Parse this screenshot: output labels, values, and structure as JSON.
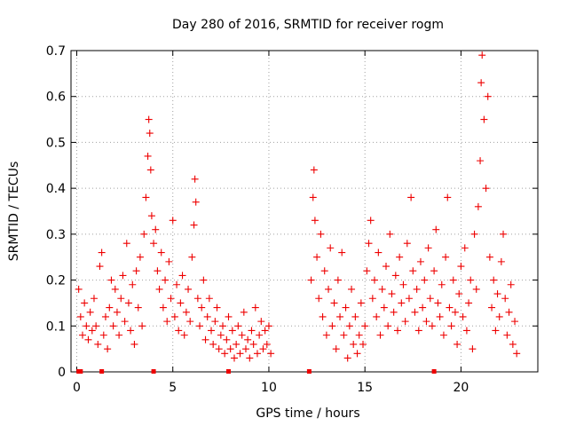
{
  "chart_data": {
    "type": "scatter",
    "title": "Day 280 of 2016, SRMTID for receiver rogm",
    "xlabel": "GPS time / hours",
    "ylabel": "SRMTID / TECUs",
    "xlim": [
      -0.3,
      24
    ],
    "ylim": [
      0,
      0.7
    ],
    "xticks": [
      0,
      5,
      10,
      15,
      20
    ],
    "yticks": [
      0,
      0.1,
      0.2,
      0.3,
      0.4,
      0.5,
      0.6,
      0.7
    ],
    "xtick_labels": [
      "0",
      "5",
      "10",
      "15",
      "20"
    ],
    "ytick_labels": [
      "0",
      "0.1",
      "0.2",
      "0.3",
      "0.4",
      "0.5",
      "0.6",
      "0.7"
    ],
    "grid": true,
    "marker": "+",
    "color": "#ee0000",
    "series": [
      {
        "name": "SRMTID",
        "points": [
          [
            0.1,
            0.18
          ],
          [
            0.2,
            0.12
          ],
          [
            0.3,
            0.08
          ],
          [
            0.4,
            0.15
          ],
          [
            0.5,
            0.1
          ],
          [
            0.6,
            0.07
          ],
          [
            0.7,
            0.13
          ],
          [
            0.8,
            0.09
          ],
          [
            0.9,
            0.16
          ],
          [
            1.0,
            0.1
          ],
          [
            1.1,
            0.06
          ],
          [
            1.2,
            0.23
          ],
          [
            1.3,
            0.26
          ],
          [
            1.4,
            0.08
          ],
          [
            1.5,
            0.12
          ],
          [
            1.6,
            0.05
          ],
          [
            1.7,
            0.14
          ],
          [
            1.8,
            0.2
          ],
          [
            1.9,
            0.1
          ],
          [
            2.0,
            0.18
          ],
          [
            2.1,
            0.13
          ],
          [
            2.2,
            0.08
          ],
          [
            2.3,
            0.16
          ],
          [
            2.4,
            0.21
          ],
          [
            2.5,
            0.11
          ],
          [
            2.6,
            0.28
          ],
          [
            2.7,
            0.15
          ],
          [
            2.8,
            0.09
          ],
          [
            2.9,
            0.19
          ],
          [
            3.0,
            0.06
          ],
          [
            3.1,
            0.22
          ],
          [
            3.2,
            0.14
          ],
          [
            3.3,
            0.25
          ],
          [
            3.4,
            0.1
          ],
          [
            3.5,
            0.3
          ],
          [
            3.6,
            0.38
          ],
          [
            3.7,
            0.47
          ],
          [
            3.75,
            0.55
          ],
          [
            3.8,
            0.52
          ],
          [
            3.85,
            0.44
          ],
          [
            3.9,
            0.34
          ],
          [
            4.0,
            0.28
          ],
          [
            4.1,
            0.31
          ],
          [
            4.2,
            0.22
          ],
          [
            4.3,
            0.18
          ],
          [
            4.4,
            0.26
          ],
          [
            4.5,
            0.14
          ],
          [
            4.6,
            0.2
          ],
          [
            4.7,
            0.11
          ],
          [
            4.8,
            0.24
          ],
          [
            4.9,
            0.16
          ],
          [
            5.0,
            0.33
          ],
          [
            5.1,
            0.12
          ],
          [
            5.2,
            0.19
          ],
          [
            5.3,
            0.09
          ],
          [
            5.4,
            0.15
          ],
          [
            5.5,
            0.21
          ],
          [
            5.6,
            0.08
          ],
          [
            5.7,
            0.13
          ],
          [
            5.8,
            0.18
          ],
          [
            5.9,
            0.11
          ],
          [
            6.0,
            0.25
          ],
          [
            6.1,
            0.32
          ],
          [
            6.15,
            0.42
          ],
          [
            6.2,
            0.37
          ],
          [
            6.3,
            0.16
          ],
          [
            6.4,
            0.1
          ],
          [
            6.5,
            0.14
          ],
          [
            6.6,
            0.2
          ],
          [
            6.7,
            0.07
          ],
          [
            6.8,
            0.12
          ],
          [
            6.9,
            0.16
          ],
          [
            7.0,
            0.09
          ],
          [
            7.1,
            0.06
          ],
          [
            7.2,
            0.11
          ],
          [
            7.3,
            0.14
          ],
          [
            7.4,
            0.05
          ],
          [
            7.5,
            0.08
          ],
          [
            7.6,
            0.1
          ],
          [
            7.7,
            0.04
          ],
          [
            7.8,
            0.07
          ],
          [
            7.9,
            0.12
          ],
          [
            8.0,
            0.05
          ],
          [
            8.1,
            0.09
          ],
          [
            8.2,
            0.03
          ],
          [
            8.3,
            0.06
          ],
          [
            8.4,
            0.1
          ],
          [
            8.5,
            0.04
          ],
          [
            8.6,
            0.08
          ],
          [
            8.7,
            0.13
          ],
          [
            8.8,
            0.05
          ],
          [
            8.9,
            0.07
          ],
          [
            9.0,
            0.03
          ],
          [
            9.1,
            0.09
          ],
          [
            9.2,
            0.06
          ],
          [
            9.3,
            0.14
          ],
          [
            9.4,
            0.04
          ],
          [
            9.5,
            0.08
          ],
          [
            9.6,
            0.11
          ],
          [
            9.7,
            0.05
          ],
          [
            9.8,
            0.09
          ],
          [
            9.9,
            0.06
          ],
          [
            10.0,
            0.1
          ],
          [
            10.1,
            0.04
          ],
          [
            12.2,
            0.2
          ],
          [
            12.3,
            0.38
          ],
          [
            12.35,
            0.44
          ],
          [
            12.4,
            0.33
          ],
          [
            12.5,
            0.25
          ],
          [
            12.6,
            0.16
          ],
          [
            12.7,
            0.3
          ],
          [
            12.8,
            0.12
          ],
          [
            12.9,
            0.22
          ],
          [
            13.0,
            0.08
          ],
          [
            13.1,
            0.18
          ],
          [
            13.2,
            0.27
          ],
          [
            13.3,
            0.1
          ],
          [
            13.4,
            0.15
          ],
          [
            13.5,
            0.05
          ],
          [
            13.6,
            0.2
          ],
          [
            13.7,
            0.12
          ],
          [
            13.8,
            0.26
          ],
          [
            13.9,
            0.08
          ],
          [
            14.0,
            0.14
          ],
          [
            14.1,
            0.03
          ],
          [
            14.2,
            0.1
          ],
          [
            14.3,
            0.18
          ],
          [
            14.4,
            0.06
          ],
          [
            14.5,
            0.12
          ],
          [
            14.6,
            0.04
          ],
          [
            14.7,
            0.08
          ],
          [
            14.8,
            0.15
          ],
          [
            14.9,
            0.06
          ],
          [
            15.0,
            0.1
          ],
          [
            15.1,
            0.22
          ],
          [
            15.2,
            0.28
          ],
          [
            15.3,
            0.33
          ],
          [
            15.4,
            0.16
          ],
          [
            15.5,
            0.2
          ],
          [
            15.6,
            0.12
          ],
          [
            15.7,
            0.26
          ],
          [
            15.8,
            0.08
          ],
          [
            15.9,
            0.18
          ],
          [
            16.0,
            0.14
          ],
          [
            16.1,
            0.23
          ],
          [
            16.2,
            0.1
          ],
          [
            16.3,
            0.3
          ],
          [
            16.4,
            0.17
          ],
          [
            16.5,
            0.13
          ],
          [
            16.6,
            0.21
          ],
          [
            16.7,
            0.09
          ],
          [
            16.8,
            0.25
          ],
          [
            16.9,
            0.15
          ],
          [
            17.0,
            0.19
          ],
          [
            17.1,
            0.11
          ],
          [
            17.2,
            0.28
          ],
          [
            17.3,
            0.16
          ],
          [
            17.4,
            0.38
          ],
          [
            17.5,
            0.22
          ],
          [
            17.6,
            0.13
          ],
          [
            17.7,
            0.18
          ],
          [
            17.8,
            0.09
          ],
          [
            17.9,
            0.24
          ],
          [
            18.0,
            0.14
          ],
          [
            18.1,
            0.2
          ],
          [
            18.2,
            0.11
          ],
          [
            18.3,
            0.27
          ],
          [
            18.4,
            0.16
          ],
          [
            18.5,
            0.1
          ],
          [
            18.6,
            0.22
          ],
          [
            18.7,
            0.31
          ],
          [
            18.8,
            0.15
          ],
          [
            18.9,
            0.12
          ],
          [
            19.0,
            0.19
          ],
          [
            19.1,
            0.08
          ],
          [
            19.2,
            0.25
          ],
          [
            19.3,
            0.38
          ],
          [
            19.4,
            0.14
          ],
          [
            19.5,
            0.1
          ],
          [
            19.6,
            0.2
          ],
          [
            19.7,
            0.13
          ],
          [
            19.8,
            0.06
          ],
          [
            19.9,
            0.17
          ],
          [
            20.0,
            0.23
          ],
          [
            20.1,
            0.12
          ],
          [
            20.2,
            0.27
          ],
          [
            20.3,
            0.09
          ],
          [
            20.4,
            0.15
          ],
          [
            20.5,
            0.2
          ],
          [
            20.6,
            0.05
          ],
          [
            20.7,
            0.3
          ],
          [
            20.8,
            0.18
          ],
          [
            20.9,
            0.36
          ],
          [
            21.0,
            0.46
          ],
          [
            21.05,
            0.63
          ],
          [
            21.1,
            0.69
          ],
          [
            21.2,
            0.55
          ],
          [
            21.3,
            0.4
          ],
          [
            21.4,
            0.6
          ],
          [
            21.5,
            0.25
          ],
          [
            21.6,
            0.14
          ],
          [
            21.7,
            0.2
          ],
          [
            21.8,
            0.09
          ],
          [
            21.9,
            0.17
          ],
          [
            22.0,
            0.12
          ],
          [
            22.1,
            0.24
          ],
          [
            22.2,
            0.3
          ],
          [
            22.3,
            0.16
          ],
          [
            22.4,
            0.08
          ],
          [
            22.5,
            0.13
          ],
          [
            22.6,
            0.19
          ],
          [
            22.7,
            0.06
          ],
          [
            22.8,
            0.11
          ],
          [
            22.9,
            0.04
          ]
        ]
      }
    ],
    "gap_markers_x": [
      0.1,
      0.2,
      1.3,
      4.0,
      7.9,
      12.1,
      18.6
    ]
  }
}
